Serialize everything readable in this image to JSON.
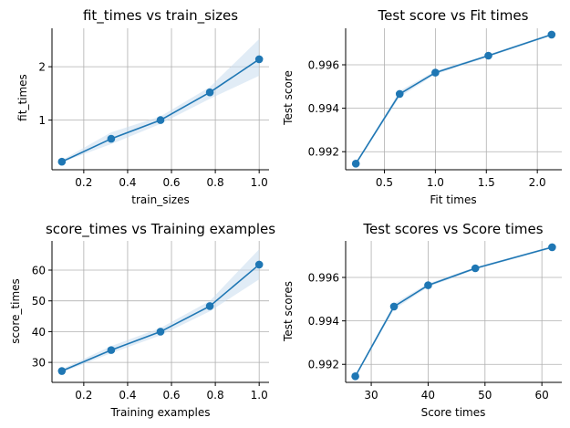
{
  "colors": {
    "line": "#1f77b4",
    "band": "#c9dcef",
    "grid": "#b0b0b0",
    "spine": "#000000"
  },
  "chart_data": [
    {
      "type": "line",
      "title": "fit_times vs train_sizes",
      "xlabel": "train_sizes",
      "ylabel": "fit_times",
      "x": [
        0.1,
        0.325,
        0.55,
        0.775,
        1.0
      ],
      "y": [
        0.22,
        0.65,
        1.0,
        1.52,
        2.14
      ],
      "band_low": [
        0.21,
        0.55,
        0.93,
        1.4,
        1.83
      ],
      "band_high": [
        0.25,
        0.77,
        1.07,
        1.62,
        2.52
      ],
      "xlim": [
        0.055,
        1.045
      ],
      "ylim": [
        0.07,
        2.72
      ],
      "xticks": [
        0.2,
        0.4,
        0.6,
        0.8,
        1.0
      ],
      "xtick_labels": [
        "0.2",
        "0.4",
        "0.6",
        "0.8",
        "1.0"
      ],
      "yticks": [
        1,
        2
      ],
      "ytick_labels": [
        "1",
        "2"
      ],
      "grid": true,
      "markers": true
    },
    {
      "type": "line",
      "title": "Test score vs Fit times",
      "xlabel": "Fit times",
      "ylabel": "Test score",
      "x": [
        0.22,
        0.65,
        1.0,
        1.52,
        2.14
      ],
      "y": [
        0.99145,
        0.99466,
        0.99564,
        0.99642,
        0.99739
      ],
      "band_low": [
        0.99141,
        0.99452,
        0.99556,
        0.99636,
        0.99734
      ],
      "band_high": [
        0.99149,
        0.9948,
        0.99572,
        0.99648,
        0.99744
      ],
      "xlim": [
        0.12,
        2.24
      ],
      "ylim": [
        0.99117,
        0.99768
      ],
      "xticks": [
        0.5,
        1.0,
        1.5,
        2.0
      ],
      "xtick_labels": [
        "0.5",
        "1.0",
        "1.5",
        "2.0"
      ],
      "yticks": [
        0.992,
        0.994,
        0.996
      ],
      "ytick_labels": [
        "0.992",
        "0.994",
        "0.996"
      ],
      "grid": true,
      "markers": true
    },
    {
      "type": "line",
      "title": "score_times vs Training examples",
      "xlabel": "Training examples",
      "ylabel": "score_times",
      "x": [
        0.1,
        0.325,
        0.55,
        0.775,
        1.0
      ],
      "y": [
        27.2,
        34.0,
        40.0,
        48.3,
        61.8
      ],
      "band_low": [
        26.7,
        33.0,
        38.8,
        46.6,
        57.0
      ],
      "band_high": [
        27.8,
        35.3,
        41.2,
        50.0,
        66.8
      ],
      "xlim": [
        0.055,
        1.045
      ],
      "ylim": [
        23.5,
        69.5
      ],
      "xticks": [
        0.2,
        0.4,
        0.6,
        0.8,
        1.0
      ],
      "xtick_labels": [
        "0.2",
        "0.4",
        "0.6",
        "0.8",
        "1.0"
      ],
      "yticks": [
        30,
        40,
        50,
        60
      ],
      "ytick_labels": [
        "30",
        "40",
        "50",
        "60"
      ],
      "grid": true,
      "markers": true
    },
    {
      "type": "line",
      "title": "Test scores vs Score times",
      "xlabel": "Score times",
      "ylabel": "Test scores",
      "x": [
        27.2,
        34.0,
        40.0,
        48.3,
        61.8
      ],
      "y": [
        0.99145,
        0.99466,
        0.99564,
        0.99642,
        0.99739
      ],
      "band_low": [
        0.99141,
        0.99452,
        0.99556,
        0.99636,
        0.99734
      ],
      "band_high": [
        0.99149,
        0.9948,
        0.99572,
        0.99648,
        0.99744
      ],
      "xlim": [
        25.5,
        63.5
      ],
      "ylim": [
        0.99117,
        0.99768
      ],
      "xticks": [
        30,
        40,
        50,
        60
      ],
      "xtick_labels": [
        "30",
        "40",
        "50",
        "60"
      ],
      "yticks": [
        0.992,
        0.994,
        0.996
      ],
      "ytick_labels": [
        "0.992",
        "0.994",
        "0.996"
      ],
      "grid": true,
      "markers": true
    }
  ]
}
